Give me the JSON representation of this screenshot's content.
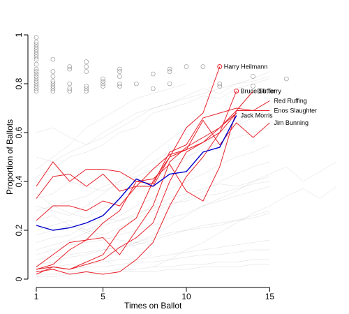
{
  "chart_data": {
    "type": "line",
    "title": "",
    "xlabel": "Times on Ballot",
    "ylabel": "Proportion of Ballots",
    "xlim": [
      1,
      19
    ],
    "ylim": [
      0,
      1
    ],
    "x_ticks": [
      1,
      5,
      10,
      15
    ],
    "y_ticks": [
      0,
      0.2,
      0.4,
      0.6,
      0.8,
      1
    ],
    "background_series_color": "#9a9a9a",
    "highlight_color": "#e8202a",
    "blue_color": "#0000cc",
    "grid": false,
    "background_series": [
      {
        "x": [
          1,
          2,
          3,
          4,
          5,
          6,
          7,
          8,
          9,
          10,
          11,
          12,
          13,
          14,
          15
        ],
        "values": [
          0.42,
          0.45,
          0.5,
          0.52,
          0.55,
          0.6,
          0.62,
          0.68,
          0.7,
          0.72,
          0.75,
          0.74,
          0.78,
          0.8,
          0.82
        ]
      },
      {
        "x": [
          1,
          2,
          3,
          4,
          5,
          6,
          7,
          8,
          9,
          10,
          11,
          12,
          13,
          14,
          15
        ],
        "values": [
          0.35,
          0.3,
          0.32,
          0.34,
          0.38,
          0.4,
          0.44,
          0.48,
          0.52,
          0.55,
          0.58,
          0.6,
          0.63,
          0.66,
          0.7
        ]
      },
      {
        "x": [
          1,
          2,
          3,
          4,
          5,
          6,
          7,
          8,
          9,
          10,
          11,
          12,
          13,
          14,
          15
        ],
        "values": [
          0.28,
          0.3,
          0.27,
          0.25,
          0.29,
          0.33,
          0.37,
          0.4,
          0.45,
          0.49,
          0.55,
          0.6,
          0.64,
          0.68,
          0.73
        ]
      },
      {
        "x": [
          1,
          2,
          3,
          4,
          5,
          6,
          7,
          8,
          9,
          10,
          11,
          12,
          13,
          14,
          15
        ],
        "values": [
          0.2,
          0.22,
          0.24,
          0.2,
          0.18,
          0.21,
          0.25,
          0.28,
          0.3,
          0.33,
          0.36,
          0.4,
          0.43,
          0.46,
          0.48
        ]
      },
      {
        "x": [
          1,
          2,
          3,
          4,
          5,
          6,
          7,
          8,
          9,
          10,
          11,
          12,
          13,
          14,
          15
        ],
        "values": [
          0.15,
          0.17,
          0.18,
          0.22,
          0.25,
          0.24,
          0.26,
          0.3,
          0.33,
          0.35,
          0.37,
          0.39,
          0.38,
          0.4,
          0.42
        ]
      },
      {
        "x": [
          1,
          2,
          3,
          4,
          5,
          6,
          7,
          8,
          9,
          10,
          11,
          12,
          13,
          14,
          15
        ],
        "values": [
          0.1,
          0.12,
          0.14,
          0.15,
          0.16,
          0.18,
          0.2,
          0.22,
          0.25,
          0.27,
          0.3,
          0.32,
          0.34,
          0.36,
          0.38
        ]
      },
      {
        "x": [
          1,
          2,
          3,
          4,
          5,
          6,
          7,
          8,
          9,
          10,
          11,
          12,
          13,
          14,
          15
        ],
        "values": [
          0.08,
          0.09,
          0.1,
          0.11,
          0.12,
          0.13,
          0.14,
          0.16,
          0.18,
          0.2,
          0.21,
          0.22,
          0.24,
          0.25,
          0.27
        ]
      },
      {
        "x": [
          1,
          2,
          3,
          4,
          5,
          6,
          7,
          8,
          9,
          10,
          11,
          12,
          13,
          14,
          15
        ],
        "values": [
          0.05,
          0.05,
          0.06,
          0.06,
          0.07,
          0.08,
          0.08,
          0.09,
          0.1,
          0.11,
          0.12,
          0.13,
          0.14,
          0.15,
          0.16
        ]
      },
      {
        "x": [
          1,
          2,
          3,
          4,
          5,
          6,
          7,
          8,
          9,
          10,
          11,
          12,
          13,
          14,
          15
        ],
        "values": [
          0.03,
          0.04,
          0.04,
          0.05,
          0.05,
          0.06,
          0.07,
          0.07,
          0.08,
          0.09,
          0.1,
          0.1,
          0.11,
          0.12,
          0.12
        ]
      },
      {
        "x": [
          1,
          2,
          3,
          4,
          5,
          6,
          7,
          8,
          9,
          10,
          11,
          12,
          13,
          14,
          15
        ],
        "values": [
          0.02,
          0.02,
          0.03,
          0.03,
          0.03,
          0.04,
          0.04,
          0.05,
          0.05,
          0.06,
          0.06,
          0.07,
          0.07,
          0.08,
          0.08
        ]
      },
      {
        "x": [
          1,
          2,
          3,
          4,
          5,
          6,
          7,
          8,
          9,
          10,
          11,
          12,
          13,
          14,
          15
        ],
        "values": [
          0.5,
          0.48,
          0.52,
          0.55,
          0.58,
          0.62,
          0.66,
          0.7,
          0.72,
          0.75,
          0.78,
          0.76,
          0.8,
          0.82,
          0.85
        ]
      },
      {
        "x": [
          1,
          2,
          3,
          4,
          5,
          6,
          7,
          8,
          9,
          10,
          11,
          12,
          13,
          14,
          15
        ],
        "values": [
          0.6,
          0.62,
          0.58,
          0.55,
          0.6,
          0.64,
          0.68,
          0.7,
          0.72,
          0.74,
          0.76,
          0.78,
          0.8,
          0.81,
          0.83
        ]
      },
      {
        "x": [
          1,
          2,
          3,
          4,
          5,
          6,
          7,
          8,
          9,
          10,
          11,
          12,
          13,
          14,
          15
        ],
        "values": [
          0.33,
          0.35,
          0.4,
          0.38,
          0.36,
          0.39,
          0.42,
          0.45,
          0.48,
          0.5,
          0.53,
          0.56,
          0.58,
          0.6,
          0.62
        ]
      },
      {
        "x": [
          1,
          2,
          3,
          4,
          5,
          6,
          7,
          8,
          9,
          10,
          11,
          12,
          13,
          14,
          15
        ],
        "values": [
          0.24,
          0.26,
          0.22,
          0.2,
          0.23,
          0.26,
          0.3,
          0.33,
          0.37,
          0.4,
          0.43,
          0.47,
          0.5,
          0.52,
          0.55
        ]
      },
      {
        "x": [
          1,
          2,
          3,
          4,
          5,
          6,
          7,
          8,
          9,
          10,
          11,
          12,
          13,
          14,
          15
        ],
        "values": [
          0.12,
          0.14,
          0.16,
          0.19,
          0.22,
          0.24,
          0.27,
          0.29,
          0.31,
          0.32,
          0.34,
          0.35,
          0.37,
          0.39,
          0.4
        ]
      },
      {
        "x": [
          1,
          2,
          3,
          4,
          5,
          6,
          7,
          8,
          9,
          10,
          11,
          12,
          13,
          14,
          15
        ],
        "values": [
          0.06,
          0.07,
          0.09,
          0.1,
          0.12,
          0.13,
          0.15,
          0.17,
          0.19,
          0.2,
          0.22,
          0.23,
          0.24,
          0.26,
          0.28
        ]
      },
      {
        "x": [
          1,
          2,
          3,
          4,
          5,
          6,
          7,
          8,
          9,
          10,
          11,
          12,
          13,
          14,
          15
        ],
        "values": [
          0.01,
          0.01,
          0.02,
          0.02,
          0.02,
          0.03,
          0.03,
          0.03,
          0.04,
          0.04,
          0.05,
          0.05,
          0.05,
          0.06,
          0.06
        ]
      },
      {
        "x": [
          1,
          2,
          3,
          4,
          5,
          6,
          7,
          8,
          9,
          10
        ],
        "values": [
          0.45,
          0.5,
          0.55,
          0.62,
          0.66,
          0.7,
          0.74,
          0.76,
          0.78,
          0.8
        ]
      },
      {
        "x": [
          1,
          2,
          3,
          4,
          5,
          6,
          7,
          8,
          9,
          10
        ],
        "values": [
          0.3,
          0.28,
          0.26,
          0.3,
          0.35,
          0.4,
          0.46,
          0.52,
          0.57,
          0.62
        ]
      },
      {
        "x": [
          1,
          2,
          3,
          4,
          5,
          6,
          7,
          8
        ],
        "values": [
          0.18,
          0.2,
          0.22,
          0.19,
          0.17,
          0.16,
          0.15,
          0.14
        ]
      },
      {
        "x": [
          5,
          6,
          7,
          8,
          9,
          10,
          11,
          12,
          13,
          14,
          15,
          16,
          17,
          18,
          19
        ],
        "values": [
          0.1,
          0.12,
          0.15,
          0.18,
          0.22,
          0.26,
          0.3,
          0.33,
          0.36,
          0.4,
          0.43,
          0.46,
          0.4,
          0.44,
          0.48
        ]
      },
      {
        "x": [
          8,
          9,
          10,
          11,
          12,
          13,
          14,
          15,
          16,
          17,
          18,
          19
        ],
        "values": [
          0.05,
          0.08,
          0.12,
          0.15,
          0.19,
          0.23,
          0.27,
          0.3,
          0.34,
          0.37,
          0.33,
          0.38
        ]
      }
    ],
    "circles": [
      {
        "x": 1,
        "y": 0.99
      },
      {
        "x": 1,
        "y": 0.97
      },
      {
        "x": 1,
        "y": 0.96
      },
      {
        "x": 1,
        "y": 0.95
      },
      {
        "x": 1,
        "y": 0.94
      },
      {
        "x": 1,
        "y": 0.93
      },
      {
        "x": 1,
        "y": 0.92
      },
      {
        "x": 1,
        "y": 0.91
      },
      {
        "x": 1,
        "y": 0.9
      },
      {
        "x": 1,
        "y": 0.88
      },
      {
        "x": 1,
        "y": 0.86
      },
      {
        "x": 1,
        "y": 0.85
      },
      {
        "x": 1,
        "y": 0.84
      },
      {
        "x": 1,
        "y": 0.83
      },
      {
        "x": 1,
        "y": 0.82
      },
      {
        "x": 1,
        "y": 0.81
      },
      {
        "x": 1,
        "y": 0.8
      },
      {
        "x": 1,
        "y": 0.79
      },
      {
        "x": 1,
        "y": 0.78
      },
      {
        "x": 1,
        "y": 0.77
      },
      {
        "x": 2,
        "y": 0.9
      },
      {
        "x": 2,
        "y": 0.85
      },
      {
        "x": 2,
        "y": 0.83
      },
      {
        "x": 2,
        "y": 0.81
      },
      {
        "x": 2,
        "y": 0.8
      },
      {
        "x": 2,
        "y": 0.79
      },
      {
        "x": 2,
        "y": 0.78
      },
      {
        "x": 2,
        "y": 0.77
      },
      {
        "x": 3,
        "y": 0.87
      },
      {
        "x": 3,
        "y": 0.86
      },
      {
        "x": 3,
        "y": 0.8
      },
      {
        "x": 3,
        "y": 0.78
      },
      {
        "x": 3,
        "y": 0.77
      },
      {
        "x": 4,
        "y": 0.89
      },
      {
        "x": 4,
        "y": 0.87
      },
      {
        "x": 4,
        "y": 0.85
      },
      {
        "x": 4,
        "y": 0.79
      },
      {
        "x": 4,
        "y": 0.78
      },
      {
        "x": 4,
        "y": 0.77
      },
      {
        "x": 5,
        "y": 0.82
      },
      {
        "x": 5,
        "y": 0.81
      },
      {
        "x": 5,
        "y": 0.8
      },
      {
        "x": 5,
        "y": 0.79
      },
      {
        "x": 6,
        "y": 0.86
      },
      {
        "x": 6,
        "y": 0.85
      },
      {
        "x": 6,
        "y": 0.83
      },
      {
        "x": 6,
        "y": 0.8
      },
      {
        "x": 6,
        "y": 0.79
      },
      {
        "x": 7,
        "y": 0.8
      },
      {
        "x": 8,
        "y": 0.84
      },
      {
        "x": 8,
        "y": 0.78
      },
      {
        "x": 9,
        "y": 0.86
      },
      {
        "x": 9,
        "y": 0.85
      },
      {
        "x": 9,
        "y": 0.8
      },
      {
        "x": 10,
        "y": 0.87
      },
      {
        "x": 11,
        "y": 0.87
      },
      {
        "x": 12,
        "y": 0.8
      },
      {
        "x": 12,
        "y": 0.79
      },
      {
        "x": 14,
        "y": 0.83
      },
      {
        "x": 14,
        "y": 0.79
      },
      {
        "x": 16,
        "y": 0.82
      }
    ],
    "highlighted_series": [
      {
        "name": "Harry Heilmann",
        "color": "#e8202a",
        "label_dx": 4,
        "x": [
          1,
          2,
          3,
          4,
          5,
          6,
          7,
          8,
          9,
          10,
          11,
          12
        ],
        "values": [
          0.02,
          0.05,
          0.04,
          0.07,
          0.1,
          0.2,
          0.25,
          0.4,
          0.5,
          0.62,
          0.68,
          0.87
        ],
        "circle_at_end": true
      },
      {
        "name": "Bill Terry",
        "color": "#e8202a",
        "label_dx": 4,
        "x": [
          1,
          2,
          3,
          4,
          5,
          6,
          7,
          8,
          9,
          10,
          11,
          12,
          13,
          14
        ],
        "values": [
          0.04,
          0.05,
          0.04,
          0.06,
          0.08,
          0.13,
          0.17,
          0.23,
          0.4,
          0.52,
          0.56,
          0.62,
          0.69,
          0.77
        ],
        "circle_at_end": false
      },
      {
        "name": "Bruce Sutter",
        "color": "#e8202a",
        "label_dx": 4,
        "x": [
          1,
          2,
          3,
          4,
          5,
          6,
          7,
          8,
          9,
          10,
          11,
          12,
          13
        ],
        "values": [
          0.24,
          0.3,
          0.3,
          0.28,
          0.32,
          0.3,
          0.38,
          0.38,
          0.5,
          0.53,
          0.56,
          0.6,
          0.77
        ],
        "circle_at_end": true
      },
      {
        "name": "Red Ruffing",
        "color": "#e8202a",
        "label_dx": 4,
        "x": [
          1,
          2,
          3,
          4,
          5,
          6,
          7,
          8,
          9,
          10,
          11,
          12,
          13,
          14,
          15
        ],
        "values": [
          0.04,
          0.06,
          0.12,
          0.16,
          0.23,
          0.28,
          0.4,
          0.39,
          0.52,
          0.55,
          0.66,
          0.68,
          0.7,
          0.69,
          0.73
        ],
        "circle_at_end": false
      },
      {
        "name": "Enos Slaughter",
        "color": "#e8202a",
        "label_dx": 4,
        "x": [
          1,
          2,
          3,
          4,
          5,
          6,
          7,
          8,
          9,
          10,
          11,
          12,
          13,
          14,
          15
        ],
        "values": [
          0.38,
          0.48,
          0.4,
          0.45,
          0.45,
          0.44,
          0.4,
          0.41,
          0.47,
          0.36,
          0.32,
          0.46,
          0.69,
          0.69,
          0.69
        ],
        "circle_at_end": false
      },
      {
        "name": "Jim Bunning",
        "color": "#e8202a",
        "label_dx": 4,
        "x": [
          1,
          2,
          3,
          4,
          5,
          6,
          7,
          8,
          9,
          10,
          11,
          12,
          13,
          14,
          15
        ],
        "values": [
          0.33,
          0.42,
          0.43,
          0.38,
          0.43,
          0.36,
          0.38,
          0.45,
          0.51,
          0.53,
          0.65,
          0.55,
          0.64,
          0.58,
          0.64
        ],
        "circle_at_end": false
      },
      {
        "name": "",
        "color": "#e8202a",
        "label_dx": 0,
        "x": [
          1,
          2,
          3,
          4,
          5,
          6,
          7,
          8,
          9,
          10,
          11,
          12,
          13
        ],
        "values": [
          0.03,
          0.04,
          0.02,
          0.03,
          0.02,
          0.03,
          0.08,
          0.15,
          0.3,
          0.42,
          0.5,
          0.6,
          0.68
        ],
        "circle_at_end": false
      },
      {
        "name": "",
        "color": "#e8202a",
        "label_dx": 0,
        "x": [
          1,
          2,
          3,
          4,
          5,
          6,
          7,
          8,
          9,
          10,
          11,
          12,
          13
        ],
        "values": [
          0.05,
          0.1,
          0.15,
          0.16,
          0.17,
          0.1,
          0.2,
          0.3,
          0.48,
          0.54,
          0.58,
          0.62,
          0.68
        ],
        "circle_at_end": false
      }
    ],
    "blue_series": {
      "name": "Jack Morris",
      "color": "#0000cc",
      "label_dx": 4,
      "x": [
        1,
        2,
        3,
        4,
        5,
        6,
        7,
        8,
        9,
        10,
        11,
        12,
        13
      ],
      "values": [
        0.22,
        0.2,
        0.21,
        0.23,
        0.26,
        0.33,
        0.41,
        0.38,
        0.43,
        0.44,
        0.52,
        0.54,
        0.67
      ]
    }
  }
}
